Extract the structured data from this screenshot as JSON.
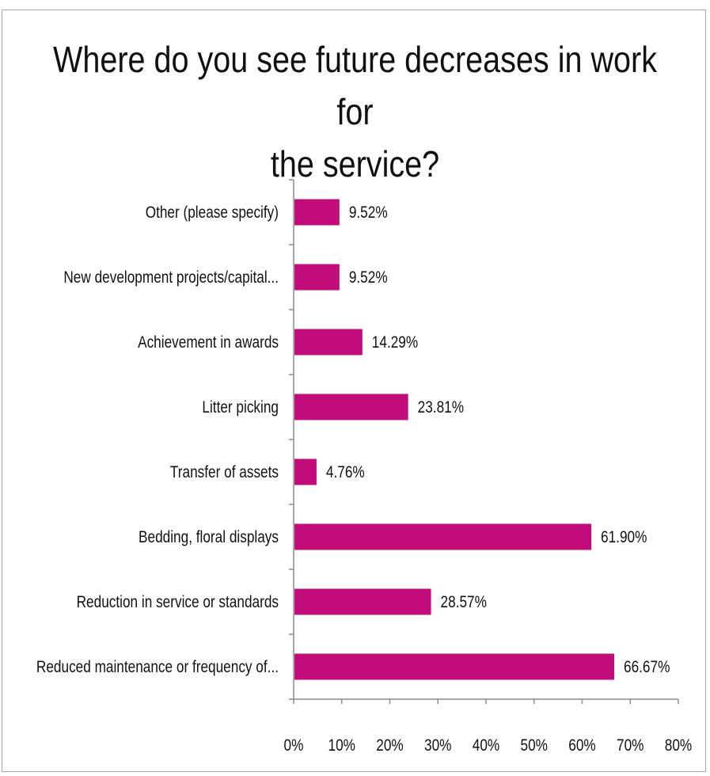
{
  "chart_data": {
    "type": "bar",
    "orientation": "horizontal",
    "title_lines": [
      "Where do you see future decreases in work for",
      "the service?"
    ],
    "categories": [
      "Other (please specify)",
      "New development projects/capital...",
      "Achievement in awards",
      "Litter picking",
      "Transfer of assets",
      "Bedding, floral displays",
      "Reduction in service or standards",
      "Reduced maintenance or frequency of..."
    ],
    "values": [
      9.52,
      9.52,
      14.29,
      23.81,
      4.76,
      61.9,
      28.57,
      66.67
    ],
    "value_labels": [
      "9.52%",
      "9.52%",
      "14.29%",
      "23.81%",
      "4.76%",
      "61.90%",
      "28.57%",
      "66.67%"
    ],
    "xlim": [
      0,
      80
    ],
    "xticks": [
      0,
      10,
      20,
      30,
      40,
      50,
      60,
      70,
      80
    ],
    "xtick_labels": [
      "0%",
      "10%",
      "20%",
      "30%",
      "40%",
      "50%",
      "60%",
      "70%",
      "80%"
    ],
    "grid": false,
    "legend": "none",
    "bar_color": "#c20c7a",
    "axis_color": "#8c8c8c"
  }
}
